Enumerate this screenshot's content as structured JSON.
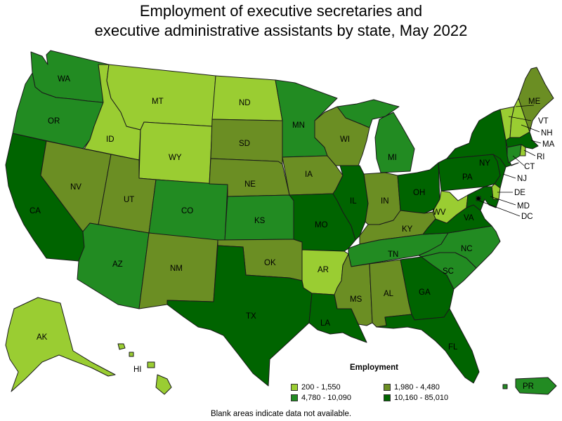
{
  "title": {
    "line1": "Employment of executive secretaries and",
    "line2": "executive administrative assistants by state, May 2022"
  },
  "legend": {
    "title": "Employment",
    "items": [
      {
        "label": "200 - 1,550",
        "color": "#9acd32"
      },
      {
        "label": "1,980 - 4,480",
        "color": "#6b8e23"
      },
      {
        "label": "4,780 - 10,090",
        "color": "#228b22"
      },
      {
        "label": "10,160 - 85,010",
        "color": "#006400"
      }
    ]
  },
  "footnote": "Blank areas indicate data not available.",
  "states": [
    {
      "abbr": "WA",
      "bin": 2
    },
    {
      "abbr": "OR",
      "bin": 2
    },
    {
      "abbr": "CA",
      "bin": 3
    },
    {
      "abbr": "ID",
      "bin": 0
    },
    {
      "abbr": "NV",
      "bin": 1
    },
    {
      "abbr": "MT",
      "bin": 0
    },
    {
      "abbr": "WY",
      "bin": 0
    },
    {
      "abbr": "UT",
      "bin": 1
    },
    {
      "abbr": "AZ",
      "bin": 2
    },
    {
      "abbr": "CO",
      "bin": 2
    },
    {
      "abbr": "NM",
      "bin": 1
    },
    {
      "abbr": "ND",
      "bin": 0
    },
    {
      "abbr": "SD",
      "bin": 1
    },
    {
      "abbr": "NE",
      "bin": 1
    },
    {
      "abbr": "KS",
      "bin": 2
    },
    {
      "abbr": "OK",
      "bin": 1
    },
    {
      "abbr": "TX",
      "bin": 3
    },
    {
      "abbr": "MN",
      "bin": 2
    },
    {
      "abbr": "IA",
      "bin": 1
    },
    {
      "abbr": "MO",
      "bin": 3
    },
    {
      "abbr": "AR",
      "bin": 0
    },
    {
      "abbr": "LA",
      "bin": 3
    },
    {
      "abbr": "WI",
      "bin": 1
    },
    {
      "abbr": "IL",
      "bin": 3
    },
    {
      "abbr": "MI",
      "bin": 2
    },
    {
      "abbr": "IN",
      "bin": 1
    },
    {
      "abbr": "OH",
      "bin": 3
    },
    {
      "abbr": "KY",
      "bin": 1
    },
    {
      "abbr": "TN",
      "bin": 2
    },
    {
      "abbr": "MS",
      "bin": 1
    },
    {
      "abbr": "AL",
      "bin": 1
    },
    {
      "abbr": "GA",
      "bin": 3
    },
    {
      "abbr": "FL",
      "bin": 3
    },
    {
      "abbr": "SC",
      "bin": 2
    },
    {
      "abbr": "NC",
      "bin": 2
    },
    {
      "abbr": "VA",
      "bin": 3
    },
    {
      "abbr": "WV",
      "bin": 0
    },
    {
      "abbr": "PA",
      "bin": 3
    },
    {
      "abbr": "NY",
      "bin": 3
    },
    {
      "abbr": "VT",
      "bin": 0
    },
    {
      "abbr": "NH",
      "bin": 0
    },
    {
      "abbr": "ME",
      "bin": 1
    },
    {
      "abbr": "MA",
      "bin": 3
    },
    {
      "abbr": "RI",
      "bin": 0
    },
    {
      "abbr": "CT",
      "bin": 2
    },
    {
      "abbr": "NJ",
      "bin": 3
    },
    {
      "abbr": "DE",
      "bin": 0
    },
    {
      "abbr": "MD",
      "bin": 3
    },
    {
      "abbr": "DC",
      "bin": 3
    },
    {
      "abbr": "AK",
      "bin": 0
    },
    {
      "abbr": "HI",
      "bin": 0
    },
    {
      "abbr": "PR",
      "bin": 2
    }
  ]
}
